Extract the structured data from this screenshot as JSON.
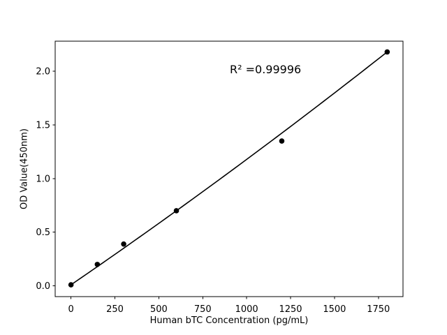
{
  "chart_data": {
    "type": "scatter",
    "title": "",
    "xlabel": "Human bTC Concentration (pg/mL)",
    "ylabel": "OD Value(450nm)",
    "annotation": "R² =0.99996",
    "points": [
      {
        "x": 0,
        "y": 0.01
      },
      {
        "x": 150,
        "y": 0.2
      },
      {
        "x": 300,
        "y": 0.39
      },
      {
        "x": 600,
        "y": 0.7
      },
      {
        "x": 1200,
        "y": 1.35
      },
      {
        "x": 1800,
        "y": 2.18
      }
    ],
    "trendline": {
      "type": "quadratic",
      "a": 0.01,
      "b": 0.0011222,
      "c": 4.63e-08,
      "x_start": 0,
      "x_end": 1800
    },
    "x_ticks": [
      {
        "value": 0,
        "label": "0"
      },
      {
        "value": 250,
        "label": "250"
      },
      {
        "value": 500,
        "label": "500"
      },
      {
        "value": 750,
        "label": "750"
      },
      {
        "value": 1000,
        "label": "1000"
      },
      {
        "value": 1250,
        "label": "1250"
      },
      {
        "value": 1500,
        "label": "1500"
      },
      {
        "value": 1750,
        "label": "1750"
      }
    ],
    "y_ticks": [
      {
        "value": 0.0,
        "label": "0.0"
      },
      {
        "value": 0.5,
        "label": "0.5"
      },
      {
        "value": 1.0,
        "label": "1.0"
      },
      {
        "value": 1.5,
        "label": "1.5"
      },
      {
        "value": 2.0,
        "label": "2.0"
      }
    ],
    "xlim": [
      -90,
      1890
    ],
    "ylim": [
      -0.1,
      2.28
    ],
    "legend": null,
    "grid": false,
    "colors": {
      "marker": "#000000",
      "line": "#000000",
      "axis": "#000000",
      "text": "#000000",
      "background": "#ffffff"
    }
  }
}
